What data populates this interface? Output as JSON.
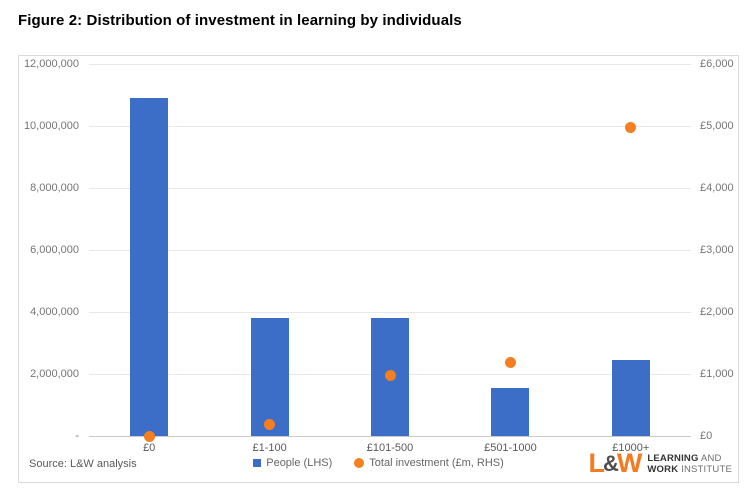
{
  "page": {
    "title": "Figure 2: Distribution of investment in learning by individuals"
  },
  "source": {
    "label": "Source: L&W analysis"
  },
  "logo": {
    "mark_l": "L",
    "mark_amp": "&",
    "mark_w": "W",
    "line1_bold": "LEARNING",
    "line1_rest": " AND",
    "line2_bold": "WORK",
    "line2_rest": " INSTITUTE"
  },
  "colors": {
    "bar": "#3c6ec8",
    "dot": "#f57e1f",
    "logo_orange": "#f47b20"
  },
  "chart_data": {
    "type": "bar",
    "subtype": "combo bar + scatter, dual axis",
    "title": "Figure 2: Distribution of investment in learning by individuals",
    "categories": [
      "£0",
      "£1-100",
      "£101-500",
      "£501-1000",
      "£1000+"
    ],
    "series": [
      {
        "name": "People (LHS)",
        "type": "bar",
        "axis": "left",
        "values": [
          10900000,
          3800000,
          3800000,
          1550000,
          2450000
        ]
      },
      {
        "name": "Total investment (£m, RHS)",
        "type": "scatter",
        "axis": "right",
        "values": [
          0,
          190,
          970,
          1180,
          4980
        ]
      }
    ],
    "left_axis": {
      "min": 0,
      "max": 12000000,
      "step": 2000000,
      "tick_labels": [
        "12,000,000",
        "10,000,000",
        "8,000,000",
        "6,000,000",
        "4,000,000",
        "2,000,000",
        "-"
      ]
    },
    "right_axis": {
      "min": 0,
      "max": 6000,
      "step": 1000,
      "tick_labels": [
        "£6,000",
        "£5,000",
        "£4,000",
        "£3,000",
        "£2,000",
        "£1,000",
        "£0"
      ]
    },
    "grid": true,
    "legend_position": "bottom-center"
  }
}
